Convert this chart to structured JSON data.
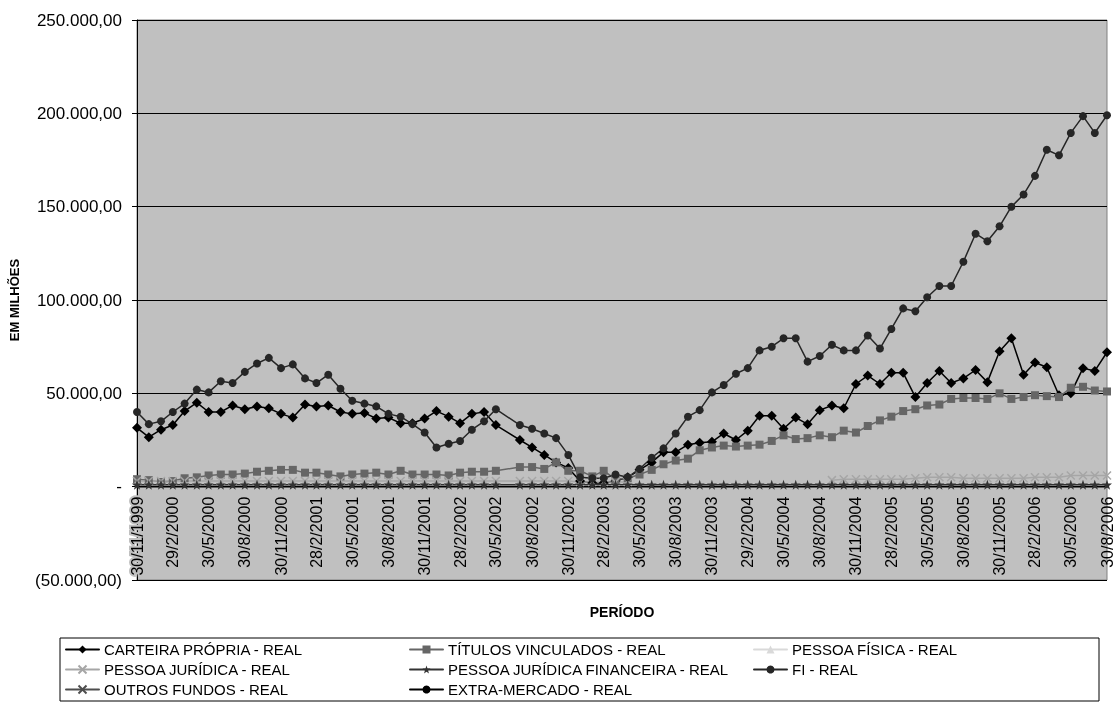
{
  "chart_data": {
    "type": "line",
    "xlabel": "PERÍODO",
    "ylabel": "EM MILHÕES",
    "x": [
      "1999-11-30",
      "1999-12-30",
      "2000-01-30",
      "2000-02-29",
      "2000-03-30",
      "2000-04-30",
      "2000-05-30",
      "2000-06-30",
      "2000-07-30",
      "2000-08-30",
      "2000-09-30",
      "2000-10-30",
      "2000-11-30",
      "2000-12-30",
      "2001-01-30",
      "2001-02-28",
      "2001-03-30",
      "2001-04-30",
      "2001-05-30",
      "2001-06-30",
      "2001-07-30",
      "2001-08-30",
      "2001-09-30",
      "2001-10-30",
      "2001-11-30",
      "2001-12-30",
      "2002-01-30",
      "2002-02-28",
      "2002-03-30",
      "2002-04-30",
      "2002-05-30",
      "2002-07-30",
      "2002-08-30",
      "2002-09-30",
      "2002-10-30",
      "2002-11-30",
      "2002-12-30",
      "2003-01-30",
      "2003-02-28",
      "2003-03-30",
      "2003-04-30",
      "2003-05-30",
      "2003-06-30",
      "2003-07-30",
      "2003-08-30",
      "2003-09-30",
      "2003-10-30",
      "2003-11-30",
      "2003-12-30",
      "2004-01-30",
      "2004-02-29",
      "2004-03-30",
      "2004-04-30",
      "2004-05-30",
      "2004-06-30",
      "2004-07-30",
      "2004-08-30",
      "2004-09-30",
      "2004-10-30",
      "2004-11-30",
      "2004-12-30",
      "2005-01-30",
      "2005-02-28",
      "2005-03-30",
      "2005-04-30",
      "2005-05-30",
      "2005-06-30",
      "2005-07-30",
      "2005-08-30",
      "2005-09-30",
      "2005-10-30",
      "2005-11-30",
      "2005-12-30",
      "2006-01-30",
      "2006-02-28",
      "2006-03-30",
      "2006-04-30",
      "2006-05-30",
      "2006-06-30",
      "2006-07-30",
      "2006-08-30"
    ],
    "series": [
      {
        "name": "CARTEIRA PRÓPRIA - REAL",
        "color": "#000000",
        "marker": "diamond",
        "values": [
          31500,
          26500,
          30500,
          33000,
          40500,
          45000,
          40000,
          40000,
          43500,
          41500,
          43000,
          42000,
          39000,
          37000,
          44000,
          43000,
          43500,
          40000,
          39000,
          39500,
          36500,
          37000,
          34000,
          34000,
          36500,
          40500,
          37500,
          34000,
          39000,
          40000,
          33000,
          25000,
          21000,
          17000,
          13000,
          10000,
          3000,
          2000,
          2000,
          3000,
          5000,
          9000,
          13000,
          18500,
          18500,
          22500,
          23500,
          24000,
          28500,
          25000,
          30000,
          38000,
          38000,
          31000,
          37000,
          33500,
          41000,
          43500,
          42000,
          55000,
          59500,
          55000,
          61000,
          61000,
          48000,
          55500,
          62000,
          55500,
          58000,
          62500,
          56000,
          72500,
          79500,
          60000,
          66500,
          64000,
          49000,
          50000,
          63500,
          62000,
          72000
        ]
      },
      {
        "name": "TÍTULOS VINCULADOS - REAL",
        "color": "#666666",
        "marker": "square",
        "values": [
          4000,
          3500,
          2500,
          3000,
          4500,
          5000,
          6000,
          6500,
          6500,
          7000,
          8000,
          8500,
          9000,
          9000,
          7500,
          7500,
          6500,
          5500,
          6500,
          7000,
          7500,
          6500,
          8500,
          6500,
          6500,
          6500,
          6000,
          7500,
          8000,
          8000,
          8500,
          10500,
          10500,
          9500,
          13000,
          8500,
          8500,
          5500,
          8500,
          4000,
          4500,
          6500,
          9000,
          12000,
          14000,
          15000,
          19500,
          21000,
          22000,
          21500,
          22000,
          22500,
          24500,
          27500,
          25500,
          26000,
          27500,
          26500,
          30000,
          29000,
          32500,
          35500,
          37500,
          40500,
          41500,
          43500,
          44000,
          47000,
          47500,
          47500,
          47000,
          50000,
          47000,
          48000,
          49000,
          48500,
          48000,
          53000,
          53500,
          51500,
          51000
        ]
      },
      {
        "name": "PESSOA FÍSICA - REAL",
        "color": "#d9d9d9",
        "marker": "triangle",
        "values": [
          null,
          null,
          null,
          null,
          null,
          null,
          null,
          null,
          null,
          null,
          null,
          null,
          null,
          null,
          null,
          null,
          null,
          null,
          null,
          null,
          null,
          null,
          null,
          null,
          null,
          null,
          null,
          null,
          null,
          null,
          null,
          null,
          null,
          null,
          null,
          null,
          null,
          null,
          null,
          null,
          null,
          null,
          null,
          null,
          null,
          null,
          null,
          null,
          null,
          null,
          null,
          null,
          null,
          null,
          null,
          null,
          null,
          null,
          null,
          null,
          null,
          null,
          null,
          null,
          null,
          null,
          null,
          null,
          null,
          null,
          null,
          null,
          null,
          null,
          null,
          null,
          null,
          null,
          null,
          null,
          null
        ]
      },
      {
        "name": "PESSOA JURÍDICA - REAL",
        "color": "#a6a6a6",
        "marker": "cross",
        "values": [
          3000,
          3000,
          3000,
          3000,
          3000,
          3000,
          3000,
          3000,
          3000,
          3000,
          3000,
          3000,
          3000,
          3000,
          3000,
          3000,
          3000,
          3000,
          3000,
          3000,
          3000,
          3000,
          3000,
          3000,
          3000,
          3000,
          3000,
          3000,
          3000,
          3000,
          3000,
          3000,
          3000,
          3000,
          3000,
          3000,
          2500,
          2500,
          2500,
          2500,
          2500,
          null,
          null,
          null,
          null,
          null,
          null,
          null,
          null,
          null,
          null,
          null,
          null,
          null,
          null,
          null,
          null,
          3500,
          4000,
          4000,
          4000,
          4000,
          4000,
          4000,
          4500,
          5000,
          5000,
          5000,
          4500,
          4500,
          4500,
          4500,
          4500,
          4500,
          5000,
          5000,
          5000,
          6000,
          6000,
          6000,
          6000
        ]
      },
      {
        "name": "PESSOA JURÍDICA FINANCEIRA - REAL",
        "color": "#333333",
        "marker": "star",
        "values": [
          1000,
          1000,
          1000,
          1000,
          1000,
          1000,
          1000,
          1000,
          1000,
          1000,
          1000,
          1000,
          1000,
          1000,
          1000,
          1000,
          1000,
          1000,
          1000,
          1000,
          1000,
          1000,
          1000,
          1000,
          1000,
          1000,
          1000,
          1000,
          1000,
          1000,
          1000,
          1000,
          1000,
          1000,
          1000,
          1000,
          1000,
          1000,
          1000,
          1000,
          1000,
          1000,
          1000,
          1000,
          1000,
          1000,
          1000,
          1000,
          1000,
          1000,
          1000,
          1000,
          1000,
          1000,
          1000,
          1000,
          1000,
          1000,
          1000,
          1000,
          1000,
          1000,
          1000,
          1000,
          1000,
          1000,
          1000,
          1000,
          1000,
          1000,
          1000,
          1000,
          1000,
          1000,
          1000,
          1000,
          1000,
          1000,
          1000,
          1000,
          1000
        ]
      },
      {
        "name": "FI - REAL",
        "color": "#262626",
        "marker": "circle",
        "values": [
          40000,
          33500,
          35000,
          40000,
          44500,
          52000,
          50500,
          56500,
          55500,
          61500,
          66000,
          69000,
          63500,
          65500,
          58000,
          55500,
          60000,
          52500,
          46000,
          44500,
          43000,
          39000,
          37500,
          33500,
          29000,
          21000,
          23000,
          24500,
          30500,
          35000,
          41500,
          33000,
          31000,
          28500,
          26000,
          17000,
          5000,
          4500,
          4500,
          6500,
          5000,
          9500,
          15500,
          20500,
          28500,
          37500,
          41000,
          50500,
          54500,
          60500,
          63500,
          73000,
          75000,
          79500,
          79500,
          67000,
          70000,
          76000,
          73000,
          73000,
          81000,
          74000,
          84500,
          95500,
          94000,
          101500,
          107500,
          107500,
          120500,
          135500,
          131500,
          139500,
          150000,
          156500,
          166500,
          180500,
          177500,
          189500,
          198500,
          189500,
          199000
        ]
      },
      {
        "name": "OUTROS FUNDOS - REAL",
        "color": "#4d4d4d",
        "marker": "cross",
        "values": [
          null,
          null,
          null,
          null,
          null,
          null,
          null,
          null,
          null,
          null,
          null,
          null,
          null,
          null,
          null,
          null,
          null,
          null,
          null,
          null,
          null,
          null,
          null,
          null,
          null,
          null,
          null,
          null,
          null,
          null,
          null,
          null,
          null,
          null,
          null,
          null,
          null,
          null,
          null,
          null,
          null,
          null,
          null,
          null,
          null,
          null,
          null,
          null,
          null,
          null,
          null,
          null,
          null,
          null,
          null,
          null,
          null,
          null,
          null,
          null,
          null,
          null,
          null,
          null,
          null,
          null,
          null,
          null,
          null,
          null,
          null,
          null,
          null,
          null,
          null,
          null,
          null,
          null,
          null,
          null,
          null
        ]
      },
      {
        "name": "EXTRA-MERCADO - REAL",
        "color": "#000000",
        "marker": "none",
        "values": [
          0,
          0,
          0,
          0,
          0,
          0,
          0,
          0,
          0,
          0,
          0,
          0,
          0,
          0,
          0,
          0,
          0,
          0,
          0,
          0,
          0,
          0,
          0,
          0,
          0,
          0,
          0,
          0,
          0,
          0,
          0,
          0,
          0,
          0,
          0,
          0,
          0,
          0,
          0,
          0,
          0,
          0,
          0,
          0,
          0,
          0,
          0,
          0,
          0,
          0,
          0,
          0,
          0,
          0,
          0,
          0,
          0,
          0,
          0,
          0,
          0,
          0,
          0,
          0,
          0,
          0,
          0,
          0,
          0,
          0,
          0,
          0,
          0,
          0,
          0,
          0,
          0,
          0,
          0,
          0,
          0
        ]
      }
    ],
    "xlim": [
      "1999-11-30",
      "2006-08-30"
    ],
    "xticks": [
      {
        "value": "1999-11-30",
        "label": "30/11/1999"
      },
      {
        "value": "2000-02-29",
        "label": "29/2/2000"
      },
      {
        "value": "2000-05-30",
        "label": "30/5/2000"
      },
      {
        "value": "2000-08-30",
        "label": "30/8/2000"
      },
      {
        "value": "2000-11-30",
        "label": "30/11/2000"
      },
      {
        "value": "2001-02-28",
        "label": "28/2/2001"
      },
      {
        "value": "2001-05-30",
        "label": "30/5/2001"
      },
      {
        "value": "2001-08-30",
        "label": "30/8/2001"
      },
      {
        "value": "2001-11-30",
        "label": "30/11/2001"
      },
      {
        "value": "2002-02-28",
        "label": "28/2/2002"
      },
      {
        "value": "2002-05-30",
        "label": "30/5/2002"
      },
      {
        "value": "2002-08-30",
        "label": "30/8/2002"
      },
      {
        "value": "2002-11-30",
        "label": "30/11/2002"
      },
      {
        "value": "2003-02-28",
        "label": "28/2/2003"
      },
      {
        "value": "2003-05-30",
        "label": "30/5/2003"
      },
      {
        "value": "2003-08-30",
        "label": "30/8/2003"
      },
      {
        "value": "2003-11-30",
        "label": "30/11/2003"
      },
      {
        "value": "2004-02-29",
        "label": "29/2/2004"
      },
      {
        "value": "2004-05-30",
        "label": "30/5/2004"
      },
      {
        "value": "2004-08-30",
        "label": "30/8/2004"
      },
      {
        "value": "2004-11-30",
        "label": "30/11/2004"
      },
      {
        "value": "2005-02-28",
        "label": "28/2/2005"
      },
      {
        "value": "2005-05-30",
        "label": "30/5/2005"
      },
      {
        "value": "2005-08-30",
        "label": "30/8/2005"
      },
      {
        "value": "2005-11-30",
        "label": "30/11/2005"
      },
      {
        "value": "2006-02-28",
        "label": "28/2/2006"
      },
      {
        "value": "2006-05-30",
        "label": "30/5/2006"
      },
      {
        "value": "2006-08-30",
        "label": "30/8/2006"
      }
    ],
    "ylim": [
      -50000,
      250000
    ],
    "yticks": [
      {
        "value": -50000,
        "label": "(50.000,00)"
      },
      {
        "value": 0,
        "label": "-"
      },
      {
        "value": 50000,
        "label": "50.000,00"
      },
      {
        "value": 100000,
        "label": "100.000,00"
      },
      {
        "value": 150000,
        "label": "150.000,00"
      },
      {
        "value": 200000,
        "label": "200.000,00"
      },
      {
        "value": 250000,
        "label": "250.000,00"
      }
    ],
    "grid": "y",
    "legend": "bottom",
    "line_style": "solid"
  }
}
